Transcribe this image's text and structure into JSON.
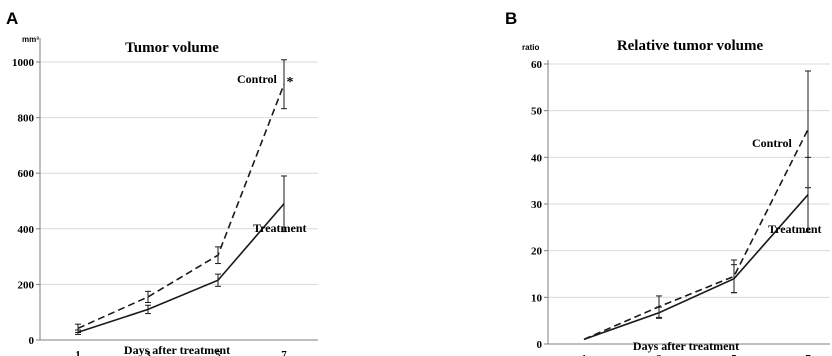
{
  "chart_data": [
    {
      "panel_label": "A",
      "type": "line",
      "title": "Tumor volume",
      "ylabel": "mm³",
      "xlabel": "Days after treatment",
      "x": [
        1,
        3,
        5,
        7
      ],
      "x_ticks": [
        "1",
        "3",
        "5",
        "7"
      ],
      "y_ticks": [
        "0",
        "200",
        "400",
        "600",
        "800",
        "1000"
      ],
      "ylim": [
        0,
        1100
      ],
      "grid": "horizontal",
      "series": [
        {
          "name": "Control",
          "style": "dashed",
          "values": [
            42,
            155,
            305,
            920
          ],
          "errors": [
            15,
            20,
            30,
            88
          ]
        },
        {
          "name": "Treatment",
          "style": "solid",
          "values": [
            28,
            110,
            215,
            490
          ],
          "errors": [
            8,
            15,
            22,
            100
          ]
        }
      ],
      "annotations": [
        {
          "text": "*",
          "x": 7,
          "y": 920
        }
      ]
    },
    {
      "panel_label": "B",
      "type": "line",
      "title": "Relative tumor volume",
      "ylabel": "ratio",
      "xlabel": "Days after treatment",
      "x": [
        1,
        3,
        5,
        7
      ],
      "x_ticks": [
        "1",
        "3",
        "5",
        "7"
      ],
      "y_ticks": [
        "0",
        "10",
        "20",
        "30",
        "40",
        "50",
        "60"
      ],
      "ylim": [
        0,
        60
      ],
      "grid": "horizontal",
      "series": [
        {
          "name": "Control",
          "style": "dashed",
          "values": [
            1,
            8,
            14.5,
            46
          ],
          "errors": [
            0,
            2.3,
            3.5,
            12.5
          ]
        },
        {
          "name": "Treatment",
          "style": "solid",
          "values": [
            1,
            6.7,
            14,
            32
          ],
          "errors": [
            0,
            1.2,
            3,
            8
          ]
        }
      ]
    }
  ],
  "colors": {
    "line": "#1a1a1a",
    "grid": "#d9d9d9",
    "axis": "#7f7f7f"
  }
}
